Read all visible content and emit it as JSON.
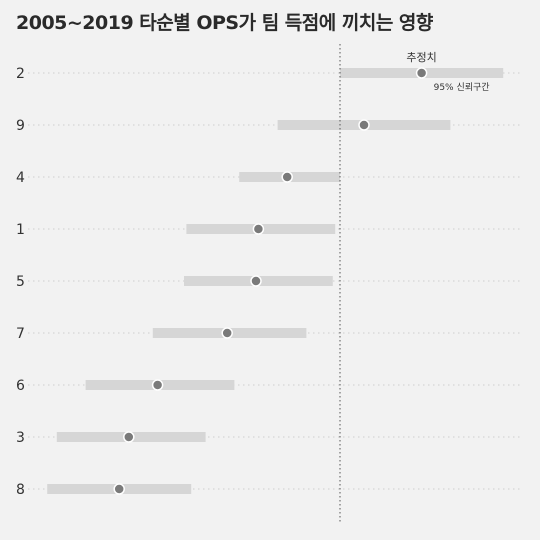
{
  "chart_data": {
    "type": "dot-interval",
    "title": "2005~2019 타순별 OPS가 팀 득점에 끼치는 영향",
    "annotations": {
      "estimate_label": "추정치",
      "ci_label": "95% 신뢰구간"
    },
    "reference_line": 0,
    "xlim": [
      -0.55,
      0.35
    ],
    "rows": [
      {
        "category": "2",
        "estimate": 0.17,
        "low": 0.0,
        "high": 0.34
      },
      {
        "category": "9",
        "estimate": 0.05,
        "low": -0.13,
        "high": 0.23
      },
      {
        "category": "4",
        "estimate": -0.11,
        "low": -0.21,
        "high": 0.0
      },
      {
        "category": "1",
        "estimate": -0.17,
        "low": -0.32,
        "high": -0.01
      },
      {
        "category": "5",
        "estimate": -0.175,
        "low": -0.325,
        "high": -0.015
      },
      {
        "category": "7",
        "estimate": -0.235,
        "low": -0.39,
        "high": -0.07
      },
      {
        "category": "6",
        "estimate": -0.38,
        "low": -0.53,
        "high": -0.22
      },
      {
        "category": "3",
        "estimate": -0.44,
        "low": -0.59,
        "high": -0.28
      },
      {
        "category": "8",
        "estimate": -0.46,
        "low": -0.61,
        "high": -0.31
      }
    ]
  }
}
